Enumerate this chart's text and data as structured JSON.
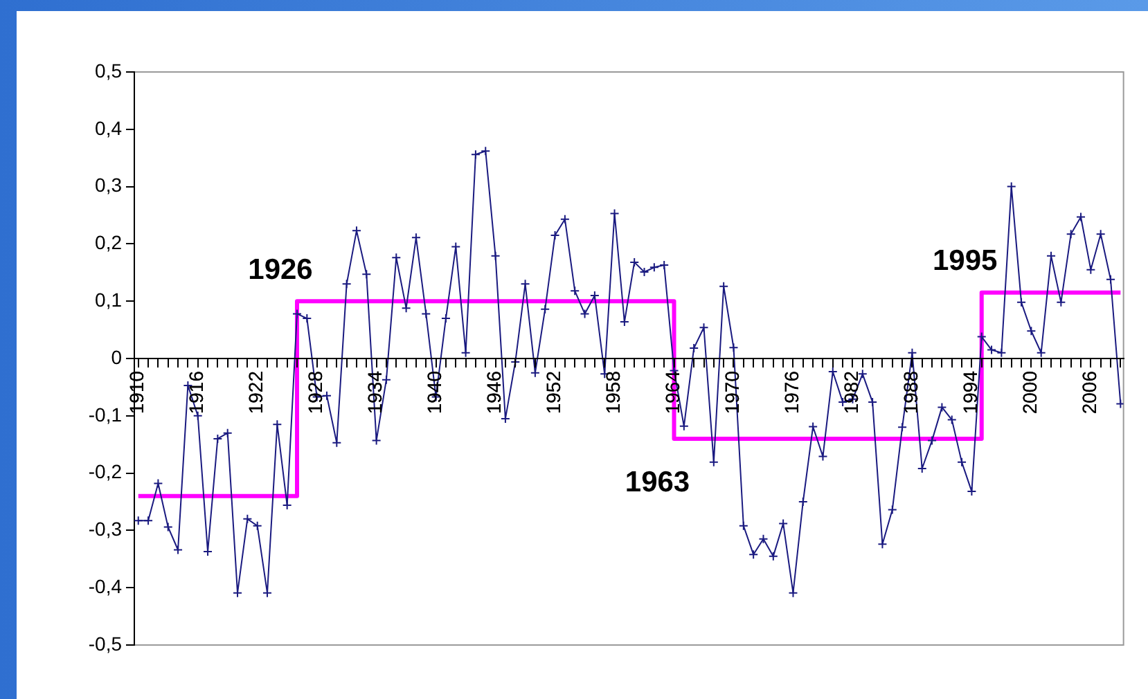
{
  "chart_data": {
    "type": "line",
    "x": [
      1910,
      1911,
      1912,
      1913,
      1914,
      1915,
      1916,
      1917,
      1918,
      1919,
      1920,
      1921,
      1922,
      1923,
      1924,
      1925,
      1926,
      1927,
      1928,
      1929,
      1930,
      1931,
      1932,
      1933,
      1934,
      1935,
      1936,
      1937,
      1938,
      1939,
      1940,
      1941,
      1942,
      1943,
      1944,
      1945,
      1946,
      1947,
      1948,
      1949,
      1950,
      1951,
      1952,
      1953,
      1954,
      1955,
      1956,
      1957,
      1958,
      1959,
      1960,
      1961,
      1962,
      1963,
      1964,
      1965,
      1966,
      1967,
      1968,
      1969,
      1970,
      1971,
      1972,
      1973,
      1974,
      1975,
      1976,
      1977,
      1978,
      1979,
      1980,
      1981,
      1982,
      1983,
      1984,
      1985,
      1986,
      1987,
      1988,
      1989,
      1990,
      1991,
      1992,
      1993,
      1994,
      1995,
      1996,
      1997,
      1998,
      1999,
      2000,
      2001,
      2002,
      2003,
      2004,
      2005,
      2006,
      2007,
      2008,
      2009
    ],
    "series": [
      {
        "type": "line",
        "color": "#1a1a80",
        "marker": "cross",
        "values": [
          -0.283,
          -0.283,
          -0.218,
          -0.294,
          -0.334,
          -0.047,
          -0.1,
          -0.337,
          -0.14,
          -0.13,
          -0.409,
          -0.28,
          -0.292,
          -0.409,
          -0.115,
          -0.256,
          0.078,
          0.07,
          -0.067,
          -0.065,
          -0.147,
          0.13,
          0.223,
          0.147,
          -0.143,
          -0.037,
          0.176,
          0.088,
          0.211,
          0.078,
          -0.067,
          0.07,
          0.195,
          0.01,
          0.356,
          0.362,
          0.179,
          -0.105,
          -0.006,
          0.13,
          -0.025,
          0.086,
          0.215,
          0.243,
          0.118,
          0.078,
          0.11,
          -0.027,
          0.253,
          0.064,
          0.168,
          0.151,
          0.159,
          0.163,
          -0.021,
          -0.118,
          0.018,
          0.054,
          -0.181,
          0.126,
          0.019,
          -0.292,
          -0.342,
          -0.315,
          -0.345,
          -0.288,
          -0.409,
          -0.25,
          -0.119,
          -0.171,
          -0.023,
          -0.076,
          -0.071,
          -0.027,
          -0.076,
          -0.324,
          -0.264,
          -0.12,
          0.01,
          -0.192,
          -0.143,
          -0.085,
          -0.107,
          -0.181,
          -0.232,
          0.038,
          0.015,
          0.01,
          0.3,
          0.098,
          0.048,
          0.01,
          0.179,
          0.098,
          0.217,
          0.247,
          0.155,
          0.217,
          0.138,
          -0.079
        ]
      },
      {
        "type": "step",
        "color": "#ff00ff",
        "marker": "none",
        "values": [
          -0.24,
          -0.24,
          -0.24,
          -0.24,
          -0.24,
          -0.24,
          -0.24,
          -0.24,
          -0.24,
          -0.24,
          -0.24,
          -0.24,
          -0.24,
          -0.24,
          -0.24,
          -0.24,
          0.1,
          0.1,
          0.1,
          0.1,
          0.1,
          0.1,
          0.1,
          0.1,
          0.1,
          0.1,
          0.1,
          0.1,
          0.1,
          0.1,
          0.1,
          0.1,
          0.1,
          0.1,
          0.1,
          0.1,
          0.1,
          0.1,
          0.1,
          0.1,
          0.1,
          0.1,
          0.1,
          0.1,
          0.1,
          0.1,
          0.1,
          0.1,
          0.1,
          0.1,
          0.1,
          0.1,
          0.1,
          0.1,
          -0.14,
          -0.14,
          -0.14,
          -0.14,
          -0.14,
          -0.14,
          -0.14,
          -0.14,
          -0.14,
          -0.14,
          -0.14,
          -0.14,
          -0.14,
          -0.14,
          -0.14,
          -0.14,
          -0.14,
          -0.14,
          -0.14,
          -0.14,
          -0.14,
          -0.14,
          -0.14,
          -0.14,
          -0.14,
          -0.14,
          -0.14,
          -0.14,
          -0.14,
          -0.14,
          -0.14,
          0.115,
          0.115,
          0.115,
          0.115,
          0.115,
          0.115,
          0.115,
          0.115,
          0.115,
          0.115,
          0.115,
          0.115,
          0.115,
          0.115,
          0.115
        ]
      }
    ],
    "xlim": [
      1909.6,
      2009.3
    ],
    "xticks": [
      1910,
      {
        "value": 1911,
        "label": null
      },
      {
        "value": 1912,
        "label": null
      },
      {
        "value": 1913,
        "label": null
      },
      {
        "value": 1914,
        "label": null
      },
      {
        "value": 1915,
        "label": null
      },
      1916,
      {
        "value": 1917,
        "label": null
      },
      {
        "value": 1918,
        "label": null
      },
      {
        "value": 1919,
        "label": null
      },
      {
        "value": 1920,
        "label": null
      },
      {
        "value": 1921,
        "label": null
      },
      1922,
      {
        "value": 1923,
        "label": null
      },
      {
        "value": 1924,
        "label": null
      },
      {
        "value": 1925,
        "label": null
      },
      {
        "value": 1926,
        "label": null
      },
      {
        "value": 1927,
        "label": null
      },
      1928,
      {
        "value": 1929,
        "label": null
      },
      {
        "value": 1930,
        "label": null
      },
      {
        "value": 1931,
        "label": null
      },
      {
        "value": 1932,
        "label": null
      },
      {
        "value": 1933,
        "label": null
      },
      1934,
      {
        "value": 1935,
        "label": null
      },
      {
        "value": 1936,
        "label": null
      },
      {
        "value": 1937,
        "label": null
      },
      {
        "value": 1938,
        "label": null
      },
      {
        "value": 1939,
        "label": null
      },
      1940,
      {
        "value": 1941,
        "label": null
      },
      {
        "value": 1942,
        "label": null
      },
      {
        "value": 1943,
        "label": null
      },
      {
        "value": 1944,
        "label": null
      },
      {
        "value": 1945,
        "label": null
      },
      1946,
      {
        "value": 1947,
        "label": null
      },
      {
        "value": 1948,
        "label": null
      },
      {
        "value": 1949,
        "label": null
      },
      {
        "value": 1950,
        "label": null
      },
      {
        "value": 1951,
        "label": null
      },
      1952,
      {
        "value": 1953,
        "label": null
      },
      {
        "value": 1954,
        "label": null
      },
      {
        "value": 1955,
        "label": null
      },
      {
        "value": 1956,
        "label": null
      },
      {
        "value": 1957,
        "label": null
      },
      1958,
      {
        "value": 1959,
        "label": null
      },
      {
        "value": 1960,
        "label": null
      },
      {
        "value": 1961,
        "label": null
      },
      {
        "value": 1962,
        "label": null
      },
      {
        "value": 1963,
        "label": null
      },
      1964,
      {
        "value": 1965,
        "label": null
      },
      {
        "value": 1966,
        "label": null
      },
      {
        "value": 1967,
        "label": null
      },
      {
        "value": 1968,
        "label": null
      },
      {
        "value": 1969,
        "label": null
      },
      1970,
      {
        "value": 1971,
        "label": null
      },
      {
        "value": 1972,
        "label": null
      },
      {
        "value": 1973,
        "label": null
      },
      {
        "value": 1974,
        "label": null
      },
      {
        "value": 1975,
        "label": null
      },
      1976,
      {
        "value": 1977,
        "label": null
      },
      {
        "value": 1978,
        "label": null
      },
      {
        "value": 1979,
        "label": null
      },
      {
        "value": 1980,
        "label": null
      },
      {
        "value": 1981,
        "label": null
      },
      1982,
      {
        "value": 1983,
        "label": null
      },
      {
        "value": 1984,
        "label": null
      },
      {
        "value": 1985,
        "label": null
      },
      {
        "value": 1986,
        "label": null
      },
      {
        "value": 1987,
        "label": null
      },
      1988,
      {
        "value": 1989,
        "label": null
      },
      {
        "value": 1990,
        "label": null
      },
      {
        "value": 1991,
        "label": null
      },
      {
        "value": 1992,
        "label": null
      },
      {
        "value": 1993,
        "label": null
      },
      1994,
      {
        "value": 1995,
        "label": null
      },
      {
        "value": 1996,
        "label": null
      },
      {
        "value": 1997,
        "label": null
      },
      {
        "value": 1998,
        "label": null
      },
      {
        "value": 1999,
        "label": null
      },
      2000,
      {
        "value": 2001,
        "label": null
      },
      {
        "value": 2002,
        "label": null
      },
      {
        "value": 2003,
        "label": null
      },
      {
        "value": 2004,
        "label": null
      },
      {
        "value": 2005,
        "label": null
      },
      2006,
      {
        "value": 2007,
        "label": null
      },
      {
        "value": 2008,
        "label": null
      },
      {
        "value": 2009,
        "label": null
      }
    ],
    "ylim": [
      -0.5,
      0.5
    ],
    "yticks": [
      {
        "value": -0.5,
        "label": "-0,5"
      },
      {
        "value": -0.4,
        "label": "-0,4"
      },
      {
        "value": -0.3,
        "label": "-0,3"
      },
      {
        "value": -0.2,
        "label": "-0,2"
      },
      {
        "value": -0.1,
        "label": "-0,1"
      },
      0,
      {
        "value": 0.1,
        "label": "0,1"
      },
      {
        "value": 0.2,
        "label": "0,2"
      },
      {
        "value": 0.3,
        "label": "0,3"
      },
      {
        "value": 0.4,
        "label": "0,4"
      },
      {
        "value": 0.5,
        "label": "0,5"
      }
    ],
    "annotations": [
      "1926",
      "1963",
      "1995"
    ],
    "grid": false,
    "legend": false
  }
}
